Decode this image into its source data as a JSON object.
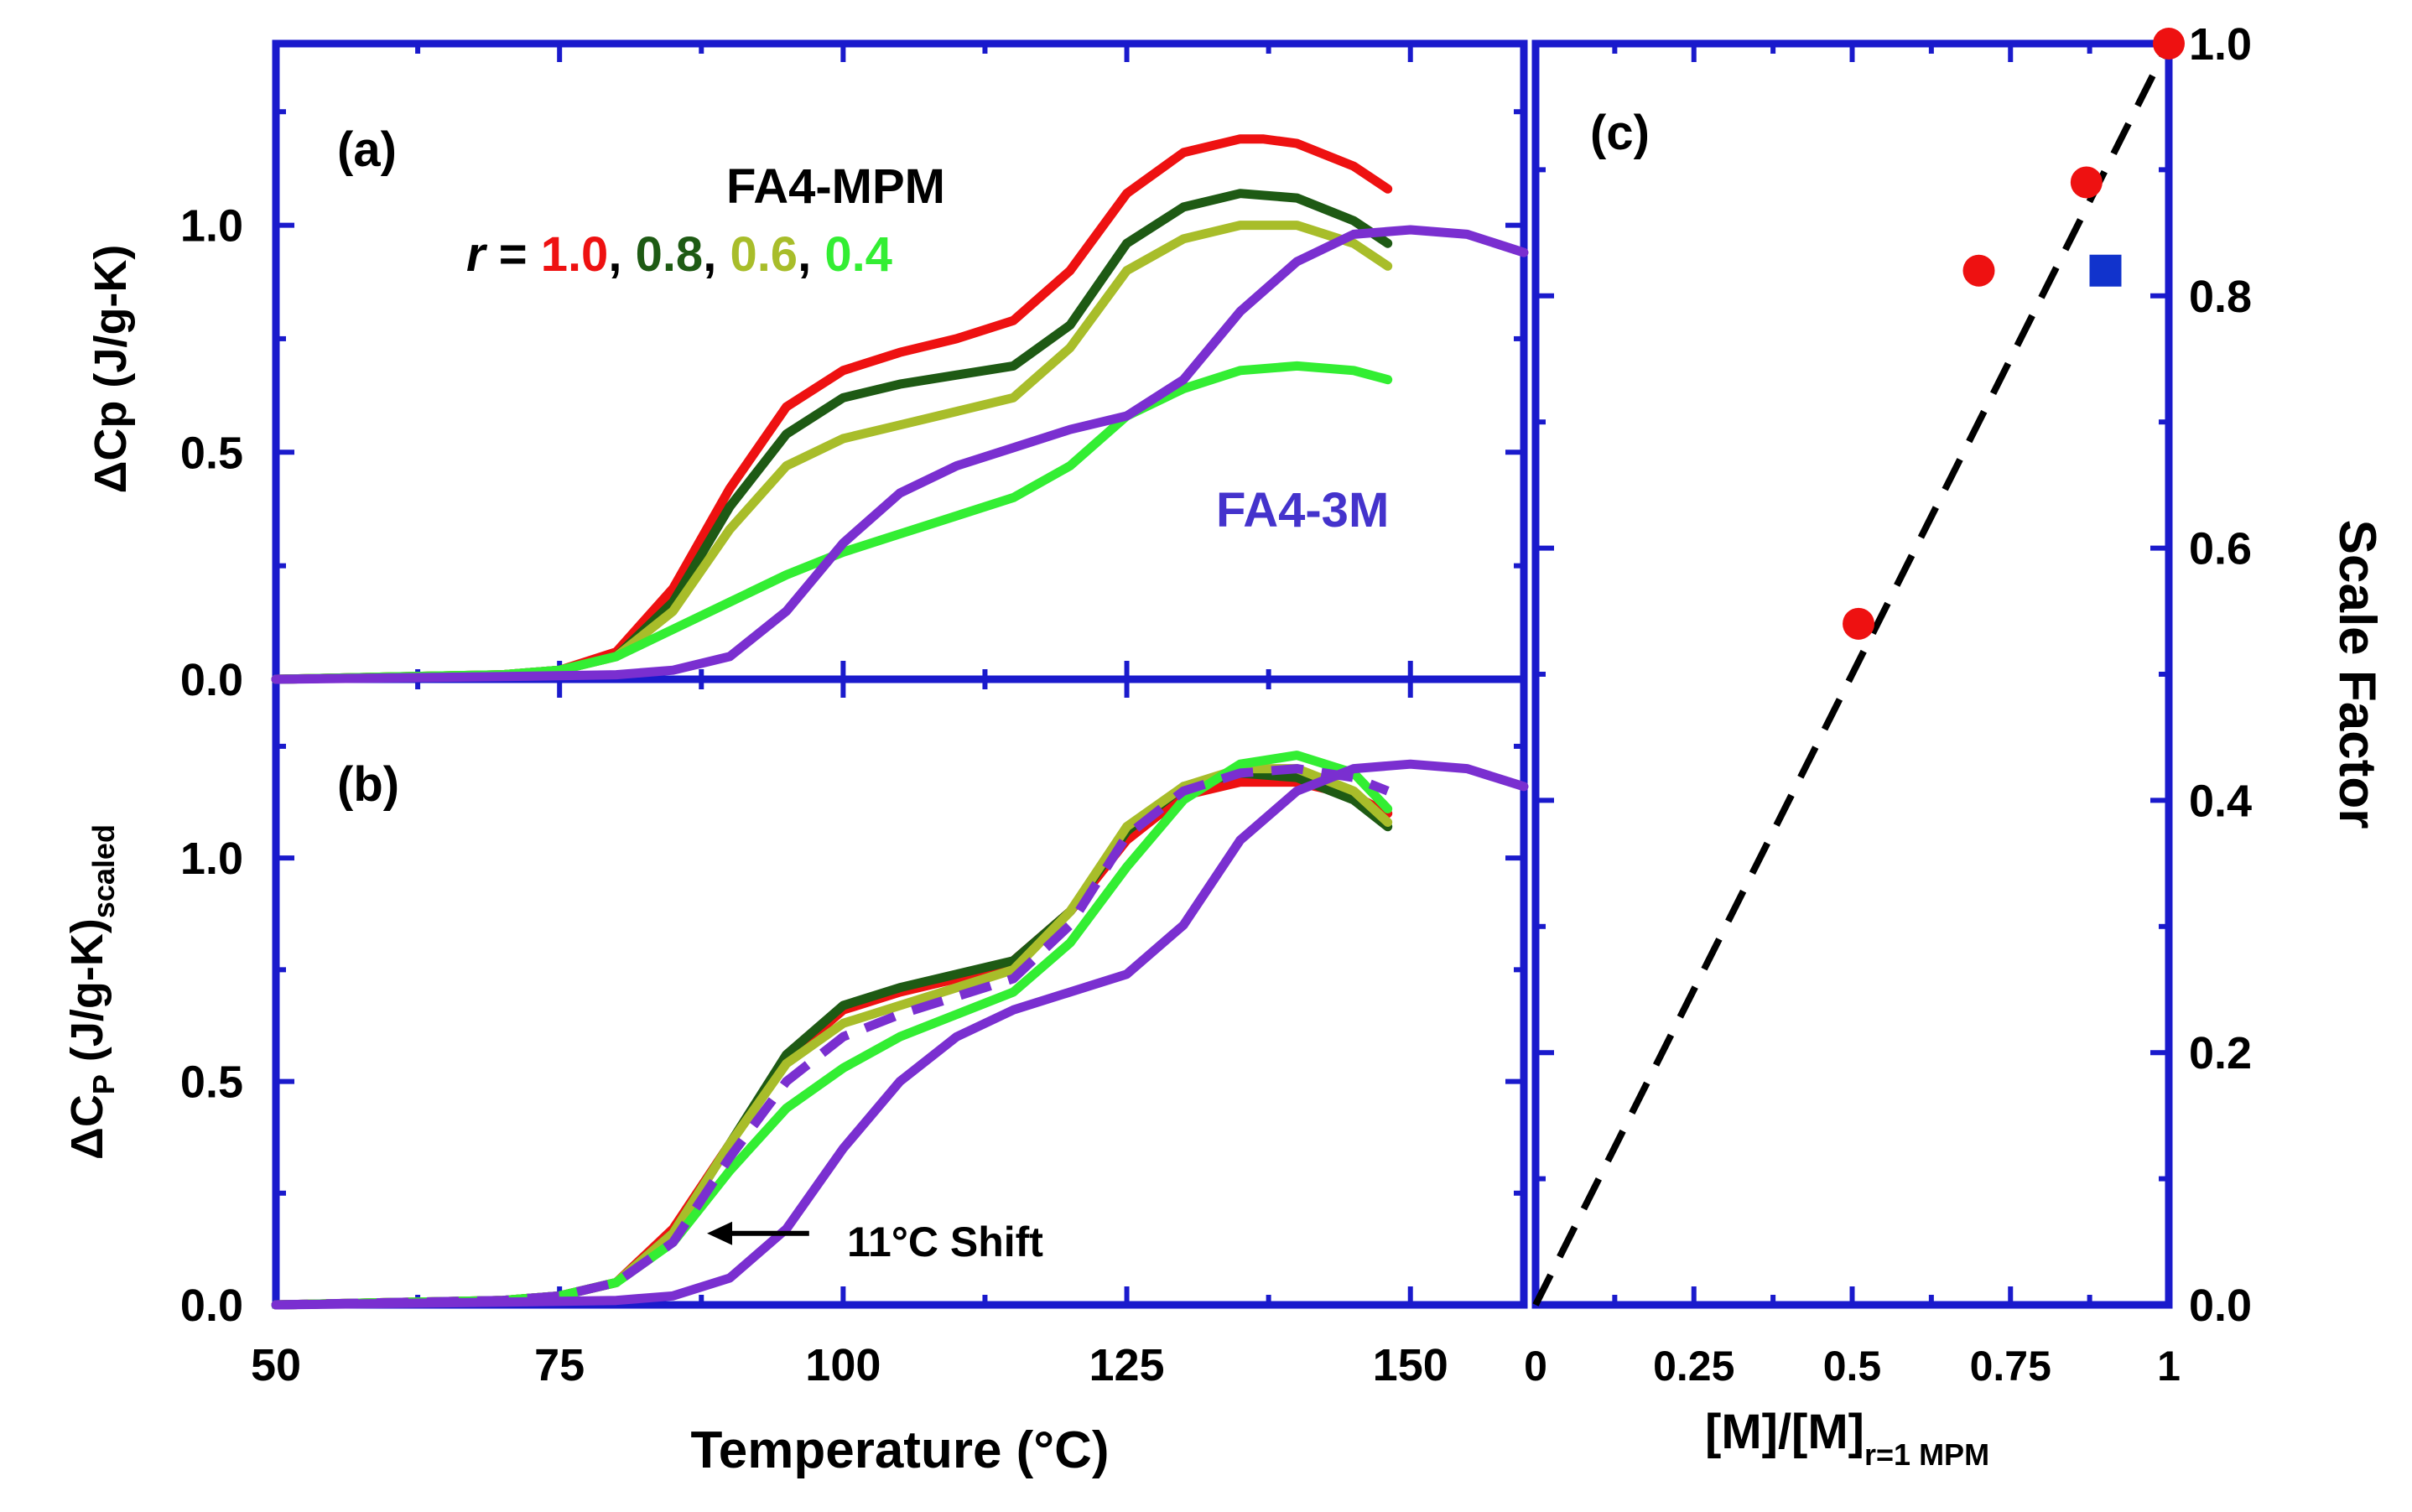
{
  "chart_data": [
    {
      "panel": "a",
      "type": "line",
      "panel_label": "(a)",
      "ylabel": "ΔCp (J/g-K)",
      "xlabel": "",
      "xlim": [
        50,
        160
      ],
      "ylim": [
        0,
        1.4
      ],
      "xticks": [
        50,
        75,
        100,
        125,
        150
      ],
      "yticks": [
        0.0,
        0.5,
        1.0
      ],
      "ytick_labels": [
        "0.0",
        "0.5",
        "1.0"
      ],
      "legend": {
        "title": "FA4-MPM",
        "prefix": "r",
        "equals": " = ",
        "entries": [
          "1.0",
          "0.8",
          "0.6",
          "0.4"
        ],
        "separator": ", ",
        "colors": [
          "#ee1111",
          "#1e5a14",
          "#a8bd2a",
          "#33ee33"
        ]
      },
      "annotations": [
        {
          "text": "FA4-3M",
          "color": "#4433cc"
        }
      ],
      "series": [
        {
          "name": "r = 1.0",
          "color": "#ee1111",
          "x": [
            50,
            60,
            70,
            75,
            80,
            85,
            90,
            95,
            100,
            105,
            110,
            115,
            120,
            125,
            130,
            135,
            137,
            140,
            145,
            148
          ],
          "y": [
            0,
            0.005,
            0.01,
            0.02,
            0.06,
            0.2,
            0.42,
            0.6,
            0.68,
            0.72,
            0.75,
            0.79,
            0.9,
            1.07,
            1.16,
            1.19,
            1.19,
            1.18,
            1.13,
            1.08
          ]
        },
        {
          "name": "r = 0.8",
          "color": "#1e5a14",
          "x": [
            50,
            60,
            70,
            75,
            80,
            85,
            90,
            95,
            100,
            105,
            110,
            115,
            120,
            125,
            130,
            135,
            140,
            145,
            148
          ],
          "y": [
            0,
            0.005,
            0.01,
            0.02,
            0.05,
            0.17,
            0.38,
            0.54,
            0.62,
            0.65,
            0.67,
            0.69,
            0.78,
            0.96,
            1.04,
            1.07,
            1.06,
            1.01,
            0.96
          ]
        },
        {
          "name": "r = 0.6",
          "color": "#a8bd2a",
          "x": [
            50,
            60,
            70,
            75,
            80,
            85,
            90,
            95,
            100,
            105,
            110,
            115,
            120,
            125,
            130,
            135,
            140,
            145,
            148
          ],
          "y": [
            0,
            0.005,
            0.01,
            0.02,
            0.05,
            0.15,
            0.33,
            0.47,
            0.53,
            0.56,
            0.59,
            0.62,
            0.73,
            0.9,
            0.97,
            1.0,
            1.0,
            0.96,
            0.91
          ]
        },
        {
          "name": "r = 0.4",
          "color": "#33ee33",
          "x": [
            50,
            60,
            70,
            75,
            80,
            85,
            90,
            95,
            100,
            105,
            110,
            115,
            120,
            125,
            130,
            135,
            140,
            145,
            148
          ],
          "y": [
            0,
            0.005,
            0.01,
            0.02,
            0.05,
            0.11,
            0.17,
            0.23,
            0.28,
            0.32,
            0.36,
            0.4,
            0.47,
            0.58,
            0.64,
            0.68,
            0.69,
            0.68,
            0.66
          ]
        },
        {
          "name": "FA4-3M",
          "color": "#7a2fd0",
          "x": [
            50,
            60,
            70,
            80,
            85,
            90,
            95,
            100,
            105,
            110,
            115,
            120,
            125,
            130,
            135,
            140,
            145,
            150,
            155,
            160
          ],
          "y": [
            0,
            0.003,
            0.006,
            0.01,
            0.02,
            0.05,
            0.15,
            0.3,
            0.41,
            0.47,
            0.51,
            0.55,
            0.58,
            0.66,
            0.81,
            0.92,
            0.98,
            0.99,
            0.98,
            0.94
          ]
        }
      ]
    },
    {
      "panel": "b",
      "type": "line",
      "panel_label": "(b)",
      "ylabel_main": "ΔC",
      "ylabel_sub1": "P",
      "ylabel_mid": " (J/g-K)",
      "ylabel_sub2": "scaled",
      "xlabel": "Temperature (°C)",
      "xlim": [
        50,
        160
      ],
      "ylim": [
        0,
        1.4
      ],
      "xticks": [
        50,
        75,
        100,
        125,
        150
      ],
      "xtick_labels": [
        "50",
        "75",
        "100",
        "125",
        "150"
      ],
      "yticks": [
        0.0,
        0.5,
        1.0
      ],
      "ytick_labels": [
        "0.0",
        "0.5",
        "1.0"
      ],
      "annotations": [
        {
          "text": "11°C Shift",
          "arrow_from_x": 97,
          "arrow_to_x": 88,
          "at_y": 0.16
        }
      ],
      "series": [
        {
          "name": "r = 1.0",
          "color": "#ee1111",
          "x": [
            50,
            60,
            70,
            75,
            80,
            85,
            90,
            95,
            100,
            105,
            110,
            115,
            120,
            125,
            130,
            135,
            140,
            145,
            148
          ],
          "y": [
            0,
            0.005,
            0.01,
            0.02,
            0.05,
            0.17,
            0.36,
            0.55,
            0.66,
            0.7,
            0.73,
            0.77,
            0.88,
            1.04,
            1.14,
            1.17,
            1.17,
            1.14,
            1.1
          ]
        },
        {
          "name": "r = 0.8",
          "color": "#1e5a14",
          "x": [
            50,
            60,
            70,
            75,
            80,
            85,
            90,
            95,
            100,
            105,
            110,
            115,
            120,
            125,
            130,
            135,
            140,
            145,
            148
          ],
          "y": [
            0,
            0.005,
            0.01,
            0.02,
            0.05,
            0.16,
            0.36,
            0.56,
            0.67,
            0.71,
            0.74,
            0.77,
            0.88,
            1.06,
            1.16,
            1.19,
            1.18,
            1.13,
            1.07
          ]
        },
        {
          "name": "r = 0.6",
          "color": "#a8bd2a",
          "x": [
            50,
            60,
            70,
            75,
            80,
            85,
            90,
            95,
            100,
            105,
            110,
            115,
            120,
            125,
            130,
            135,
            140,
            145,
            148
          ],
          "y": [
            0,
            0.005,
            0.01,
            0.02,
            0.05,
            0.16,
            0.36,
            0.54,
            0.63,
            0.67,
            0.71,
            0.75,
            0.88,
            1.07,
            1.16,
            1.2,
            1.2,
            1.15,
            1.08
          ]
        },
        {
          "name": "r = 0.4",
          "color": "#33ee33",
          "x": [
            50,
            60,
            70,
            75,
            80,
            85,
            90,
            95,
            100,
            105,
            110,
            115,
            120,
            125,
            130,
            135,
            140,
            145,
            148
          ],
          "y": [
            0,
            0.005,
            0.01,
            0.02,
            0.05,
            0.14,
            0.3,
            0.44,
            0.53,
            0.6,
            0.65,
            0.7,
            0.81,
            0.98,
            1.13,
            1.21,
            1.23,
            1.19,
            1.11
          ]
        },
        {
          "name": "FA4-3M",
          "color": "#7a2fd0",
          "x": [
            50,
            60,
            70,
            80,
            85,
            90,
            95,
            100,
            105,
            110,
            115,
            120,
            125,
            130,
            135,
            140,
            145,
            150,
            155,
            160
          ],
          "y": [
            0,
            0.003,
            0.006,
            0.01,
            0.02,
            0.06,
            0.17,
            0.35,
            0.5,
            0.6,
            0.66,
            0.7,
            0.74,
            0.85,
            1.04,
            1.15,
            1.2,
            1.21,
            1.2,
            1.16
          ]
        },
        {
          "name": "FA4-3M shifted",
          "color": "#7a2fd0",
          "dashed": true,
          "x": [
            50,
            60,
            70,
            75,
            80,
            85,
            90,
            95,
            100,
            105,
            110,
            115,
            120,
            125,
            130,
            135,
            140,
            145,
            148
          ],
          "y": [
            0,
            0.005,
            0.01,
            0.02,
            0.05,
            0.14,
            0.33,
            0.5,
            0.6,
            0.65,
            0.69,
            0.73,
            0.85,
            1.05,
            1.15,
            1.19,
            1.2,
            1.18,
            1.15
          ]
        }
      ]
    },
    {
      "panel": "c",
      "type": "scatter",
      "panel_label": "(c)",
      "xlabel_main": "[M]/[M]",
      "xlabel_sub": "r=1 MPM",
      "ylabel": "Scale Factor",
      "xlim": [
        0,
        1
      ],
      "ylim": [
        0,
        1
      ],
      "xticks": [
        0,
        0.25,
        0.5,
        0.75,
        1
      ],
      "xtick_labels": [
        "0",
        "0.25",
        "0.5",
        "0.75",
        "1"
      ],
      "yticks": [
        0,
        0.2,
        0.4,
        0.6,
        0.8,
        1.0
      ],
      "ytick_labels": [
        "0.0",
        "0.2",
        "0.4",
        "0.6",
        "0.8",
        "1.0"
      ],
      "series": [
        {
          "name": "FA4-MPM",
          "marker": "circle",
          "color": "#ee1111",
          "x": [
            1.0,
            0.87,
            0.7,
            0.51
          ],
          "y": [
            1.0,
            0.89,
            0.82,
            0.54
          ]
        },
        {
          "name": "FA4-3M",
          "marker": "square",
          "color": "#1133cc",
          "x": [
            0.9
          ],
          "y": [
            0.82
          ]
        },
        {
          "name": "fit",
          "color": "#000000",
          "dashed": true,
          "x": [
            0,
            1
          ],
          "y": [
            0,
            1
          ]
        }
      ]
    }
  ]
}
